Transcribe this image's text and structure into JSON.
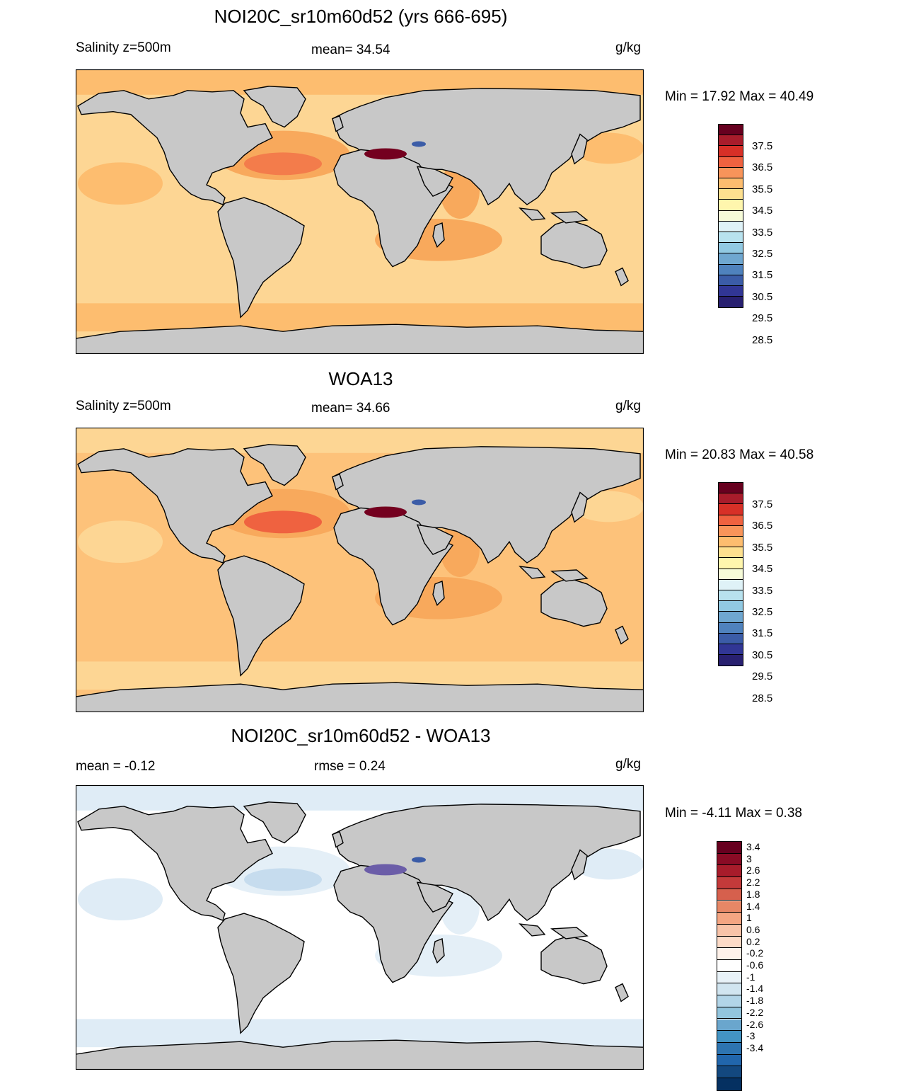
{
  "panels": [
    {
      "title": "NOI20C_sr10m60d52 (yrs 666-695)",
      "left_label": "Salinity z=500m",
      "center_label": "mean=  34.54",
      "right_label": "g/kg",
      "minmax": "Min =  17.92 Max =  40.49",
      "colorbar": {
        "labels": [
          "37.5",
          "36.5",
          "35.5",
          "34.5",
          "33.5",
          "32.5",
          "31.5",
          "30.5",
          "29.5",
          "28.5"
        ],
        "colors": [
          "#67001f",
          "#a81c2b",
          "#d73027",
          "#ef6240",
          "#f8945a",
          "#fdbd6f",
          "#fee08f",
          "#fff6ad",
          "#f6fbd8",
          "#dff2f7",
          "#b8e2ee",
          "#91c9e2",
          "#6fa7d0",
          "#4f82bd",
          "#3b5ca7",
          "#313695",
          "#282070"
        ]
      },
      "regions": {
        "base": "#fdd694",
        "high": "#f8a95c",
        "med": "#f37c4b",
        "extreme": "#74001f",
        "polar": "#fdbd6f"
      }
    },
    {
      "title": "WOA13",
      "left_label": "Salinity z=500m",
      "center_label": "mean=  34.66",
      "right_label": "g/kg",
      "minmax": "Min =  20.83 Max =  40.58",
      "colorbar": {
        "labels": [
          "37.5",
          "36.5",
          "35.5",
          "34.5",
          "33.5",
          "32.5",
          "31.5",
          "30.5",
          "29.5",
          "28.5"
        ],
        "colors": [
          "#67001f",
          "#a81c2b",
          "#d73027",
          "#ef6240",
          "#f8945a",
          "#fdbd6f",
          "#fee08f",
          "#fff6ad",
          "#f6fbd8",
          "#dff2f7",
          "#b8e2ee",
          "#91c9e2",
          "#6fa7d0",
          "#4f82bd",
          "#3b5ca7",
          "#313695",
          "#282070"
        ]
      },
      "regions": {
        "base": "#fdc27a",
        "high": "#f8a95c",
        "med": "#ef6240",
        "extreme": "#74001f",
        "polar": "#fdd694"
      }
    },
    {
      "title": "NOI20C_sr10m60d52 - WOA13",
      "left_label": "mean =  -0.12",
      "center_label": "rmse =   0.24",
      "right_label": "g/kg",
      "minmax": "Min =  -4.11 Max =   0.38",
      "colorbar": {
        "labels": [
          "3.4",
          "3",
          "2.6",
          "2.2",
          "1.8",
          "1.4",
          "1",
          "0.6",
          "0.2",
          "-0.2",
          "-0.6",
          "-1",
          "-1.4",
          "-1.8",
          "-2.2",
          "-2.6",
          "-3",
          "-3.4"
        ],
        "colors": [
          "#67001f",
          "#8a0b25",
          "#a81c2b",
          "#c33a3a",
          "#d6604d",
          "#e68766",
          "#f4a582",
          "#f8c3a8",
          "#fddbc7",
          "#fff2ea",
          "#ffffff",
          "#e8f2f8",
          "#d1e5f0",
          "#b2d5e8",
          "#92c5de",
          "#6aa6cd",
          "#4393c3",
          "#2d74b1",
          "#2166ac",
          "#13487f",
          "#053061"
        ]
      },
      "regions": {
        "base": "#ffffff",
        "high": "#e4eff7",
        "med": "#c6dcee",
        "extreme": "#6b5da8",
        "polar": "#dfecf6"
      }
    }
  ]
}
